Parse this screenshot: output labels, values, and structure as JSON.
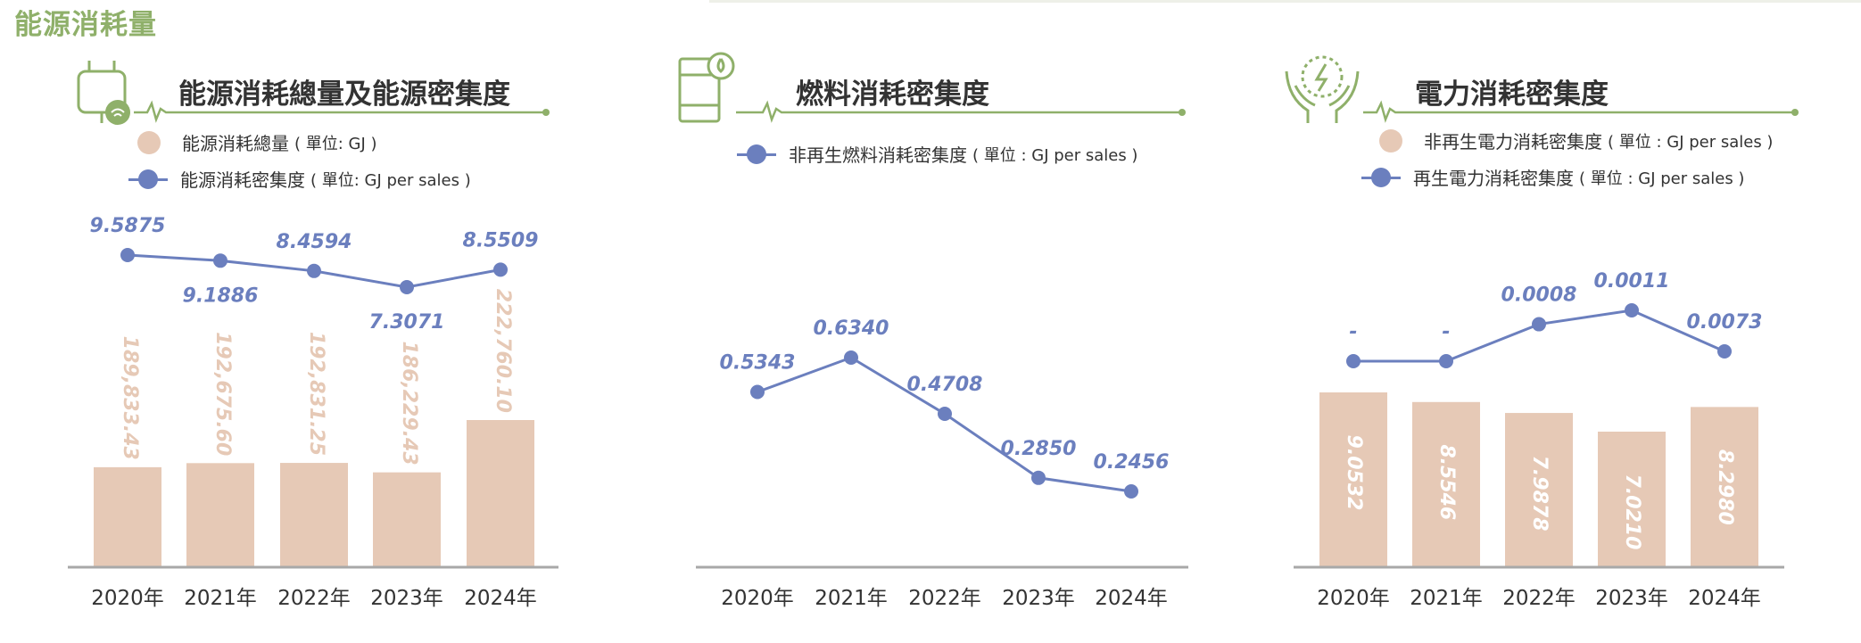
{
  "page_title": "能源消耗量",
  "colors": {
    "accent_green": "#8fb06a",
    "line_blue": "#6b7fbe",
    "bar_beige": "#e6c9b6",
    "axis_gray": "#a8a8a8"
  },
  "panels": [
    {
      "title": "能源消耗總量及能源密集度",
      "icon": "plug-icon",
      "legend": [
        {
          "kind": "dot",
          "label": "能源消耗總量",
          "unit": "( 單位: GJ )"
        },
        {
          "kind": "line",
          "label": "能源消耗密集度",
          "unit": "( 單位: GJ per sales )"
        }
      ]
    },
    {
      "title": "燃料消耗密集度",
      "icon": "fuel-barrel-icon",
      "legend": [
        {
          "kind": "line",
          "label": "非再生燃料消耗密集度",
          "unit": "( 單位 : GJ per sales )"
        }
      ]
    },
    {
      "title": "電力消耗密集度",
      "icon": "hands-lightning-icon",
      "legend": [
        {
          "kind": "dot",
          "label": "非再生電力消耗密集度",
          "unit": "( 單位 : GJ per sales )"
        },
        {
          "kind": "line",
          "label": "再生電力消耗密集度",
          "unit": "( 單位 : GJ per sales )"
        }
      ]
    }
  ],
  "chart_data": [
    {
      "type": "bar+line",
      "categories": [
        "2020年",
        "2021年",
        "2022年",
        "2023年",
        "2024年"
      ],
      "bars": {
        "name": "能源消耗總量",
        "values": [
          189833.43,
          192675.6,
          192831.25,
          186229.43,
          222760.1
        ],
        "labels": [
          "189,833.43",
          "192,675.60",
          "192,831.25",
          "186,229.43",
          "222,760.10"
        ]
      },
      "line": {
        "name": "能源消耗密集度",
        "values": [
          9.5875,
          9.1886,
          8.4594,
          7.3071,
          8.5509
        ],
        "labels": [
          "9.5875",
          "9.1886",
          "8.4594",
          "7.3071",
          "8.5509"
        ]
      }
    },
    {
      "type": "line",
      "categories": [
        "2020年",
        "2021年",
        "2022年",
        "2023年",
        "2024年"
      ],
      "line": {
        "name": "非再生燃料消耗密集度",
        "values": [
          0.5343,
          0.634,
          0.4708,
          0.285,
          0.2456
        ],
        "labels": [
          "0.5343",
          "0.6340",
          "0.4708",
          "0.2850",
          "0.2456"
        ]
      }
    },
    {
      "type": "bar+line",
      "categories": [
        "2020年",
        "2021年",
        "2022年",
        "2023年",
        "2024年"
      ],
      "bars": {
        "name": "非再生電力消耗密集度",
        "values": [
          9.0532,
          8.5546,
          7.9878,
          7.021,
          8.298
        ],
        "labels": [
          "9.0532",
          "8.5546",
          "7.9878",
          "7.0210",
          "8.2980"
        ]
      },
      "line": {
        "name": "再生電力消耗密集度",
        "values": [
          0,
          0,
          0.0008,
          0.0011,
          0.0073
        ],
        "labels": [
          "-",
          "-",
          "0.0008",
          "0.0011",
          "0.0073"
        ]
      }
    }
  ]
}
